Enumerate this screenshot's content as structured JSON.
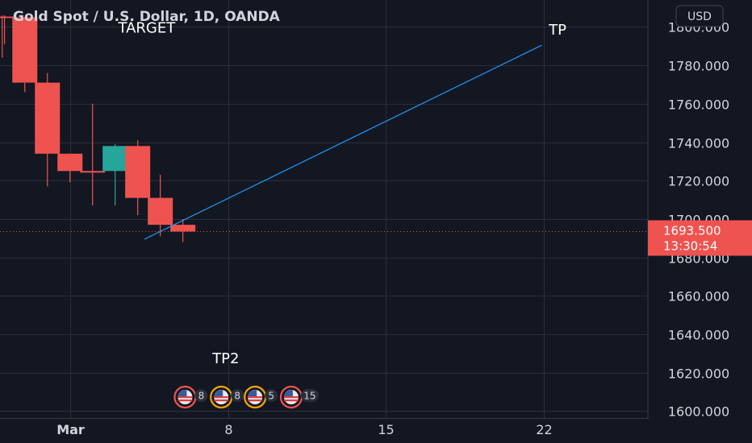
{
  "chart_data": {
    "type": "candlestick",
    "title": "Gold Spot / U.S. Dollar, 1D, OANDA",
    "currency": "USD",
    "y_ticks": [
      "1800.000",
      "1780.000",
      "1760.000",
      "1740.000",
      "1720.000",
      "1700.000",
      "1680.000",
      "1660.000",
      "1640.000",
      "1620.000",
      "1600.000"
    ],
    "y_tick_values": [
      1800,
      1780,
      1760,
      1740,
      1720,
      1700,
      1680,
      1660,
      1640,
      1620,
      1600
    ],
    "ylim": [
      1596,
      1814
    ],
    "x_ticks": [
      {
        "label": "Mar",
        "day": 1,
        "bold": true
      },
      {
        "label": "8",
        "day": 8,
        "bold": false
      },
      {
        "label": "15",
        "day": 15,
        "bold": false
      },
      {
        "label": "22",
        "day": 22,
        "bold": false
      }
    ],
    "xlim": [
      -2.1,
      26.6
    ],
    "candles": [
      {
        "day": -1.9,
        "open": 1805,
        "high": 1806,
        "low": 1791,
        "close": 1805,
        "partial": true
      },
      {
        "day": -2,
        "open": 1805,
        "high": 1806,
        "low": 1784,
        "close": 1805,
        "partial": true
      },
      {
        "day": -1,
        "open": 1805,
        "high": 1805,
        "low": 1766,
        "close": 1771
      },
      {
        "day": 0,
        "open": 1771,
        "high": 1776,
        "low": 1717,
        "close": 1734
      },
      {
        "day": 1,
        "open": 1734,
        "high": 1734,
        "low": 1719,
        "close": 1725
      },
      {
        "day": 2,
        "open": 1725,
        "high": 1760,
        "low": 1707,
        "close": 1725
      },
      {
        "day": 3,
        "open": 1725,
        "high": 1739,
        "low": 1707,
        "close": 1738
      },
      {
        "day": 4,
        "open": 1738,
        "high": 1741,
        "low": 1702,
        "close": 1711
      },
      {
        "day": 5,
        "open": 1711,
        "high": 1723,
        "low": 1691,
        "close": 1697
      },
      {
        "day": 6,
        "open": 1697,
        "high": 1700,
        "low": 1688,
        "close": 1693.5
      }
    ],
    "current_price": {
      "value": 1693.5,
      "label": "1693.500",
      "countdown": "13:30:54"
    },
    "trend_line": {
      "x1": 4.3,
      "y1": 1689.5,
      "x2": 21.9,
      "y2": 1790.5
    },
    "annotations": [
      {
        "text": "TARGET",
        "day": 4.4,
        "value": 1797
      },
      {
        "text": "TP",
        "day": 22.6,
        "value": 1796
      },
      {
        "text": "TP2",
        "day": 7.9,
        "value": 1625
      }
    ],
    "events": [
      {
        "day": 6.1,
        "count": "8"
      },
      {
        "day": 7.7,
        "count": "8"
      },
      {
        "day": 9.2,
        "count": "5"
      },
      {
        "day": 10.8,
        "count": "15"
      }
    ],
    "colors": {
      "background": "#131722",
      "grid": "#2a2e39",
      "up": "#26a69a",
      "down": "#ef5350",
      "trend": "#2196f3",
      "price_tag": "#ef5350",
      "axis_text": "#d1d4dc",
      "event_ring": "#ef5350",
      "event_ring_alt": "#f7a600"
    },
    "grid": true
  }
}
